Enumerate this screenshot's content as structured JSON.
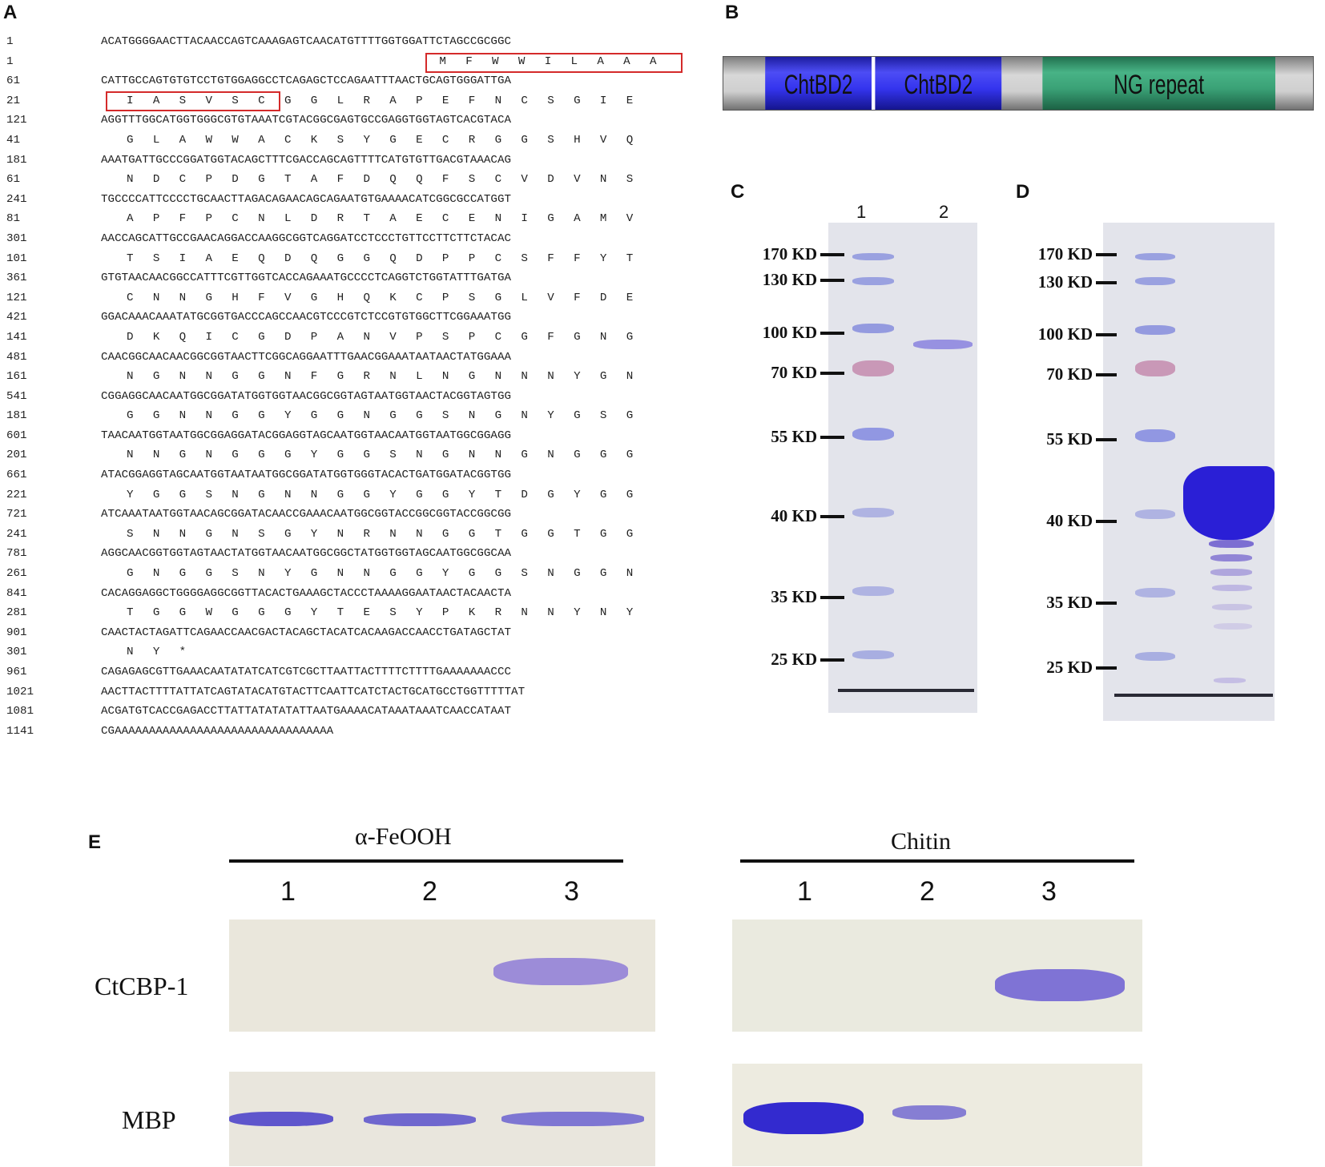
{
  "panels": {
    "a": "A",
    "b": "B",
    "c": "C",
    "d": "D",
    "e": "E"
  },
  "sequence": {
    "rows": [
      {
        "num": "1",
        "type": "nt",
        "text": "ACATGGGGAACTTACAACCAGTCAAAGAGTCAACATGTTTTGGTGGATTCTAGCCGCGGC"
      },
      {
        "num": "1",
        "type": "aa",
        "text": "M F W W I L A A A",
        "offset": 16
      },
      {
        "num": "61",
        "type": "nt",
        "text": "CATTGCCAGTGTGTCCTGTGGAGGCCTCAGAGCTCCAGAATTTAACTGCAGTGGGATTGA"
      },
      {
        "num": "21",
        "type": "aa",
        "text": "I A S V S C G G L R A P E F N C S G I E",
        "offset": 0
      },
      {
        "num": "121",
        "type": "nt",
        "text": "AGGTTTGGCATGGTGGGCGTGTAAATCGTACGGCGAGTGCCGAGGTGGTAGTCACGTACA"
      },
      {
        "num": "41",
        "type": "aa",
        "text": "G L A W W A C K S Y G E C R G G S H V Q",
        "offset": 0
      },
      {
        "num": "181",
        "type": "nt",
        "text": "AAATGATTGCCCGGATGGTACAGCTTTCGACCAGCAGTTTTCATGTGTTGACGTAAACAG"
      },
      {
        "num": "61",
        "type": "aa",
        "text": "N D C P D G T A F D Q Q F S C V D V N S",
        "offset": 0
      },
      {
        "num": "241",
        "type": "nt",
        "text": "TGCCCCATTCCCCTGCAACTTAGACAGAACAGCAGAATGTGAAAACATCGGCGCCATGGT"
      },
      {
        "num": "81",
        "type": "aa",
        "text": "A P F P C N L D R T A E C E N I G A M V",
        "offset": 0
      },
      {
        "num": "301",
        "type": "nt",
        "text": "AACCAGCATTGCCGAACAGGACCAAGGCGGTCAGGATCCTCCCTGTTCCTTCTTCTACAC"
      },
      {
        "num": "101",
        "type": "aa",
        "text": "T S I A E Q D Q G G Q D P P C S F F Y T",
        "offset": 0
      },
      {
        "num": "361",
        "type": "nt",
        "text": "GTGTAACAACGGCCATTTCGTTGGTCACCAGAAATGCCCCTCAGGTCTGGTATTTGATGA"
      },
      {
        "num": "121",
        "type": "aa",
        "text": "C N N G H F V G H Q K C P S G L V F D E",
        "offset": 0
      },
      {
        "num": "421",
        "type": "nt",
        "text": "GGACAAACAAATATGCGGTGACCCAGCCAACGTCCCGTCTCCGTGTGGCTTCGGAAATGG"
      },
      {
        "num": "141",
        "type": "aa",
        "text": "D K Q I C G D P A N V P S P C G F G N G",
        "offset": 0
      },
      {
        "num": "481",
        "type": "nt",
        "text": "CAACGGCAACAACGGCGGTAACTTCGGCAGGAATTTGAACGGAAATAATAACTATGGAAA"
      },
      {
        "num": "161",
        "type": "aa",
        "text": "N G N N G G N F G R N L N G N N N Y G N",
        "offset": 0
      },
      {
        "num": "541",
        "type": "nt",
        "text": "CGGAGGCAACAATGGCGGATATGGTGGTAACGGCGGTAGTAATGGTAACTACGGTAGTGG"
      },
      {
        "num": "181",
        "type": "aa",
        "text": "G G N N G G Y G G N G G S N G N Y G S G",
        "offset": 0
      },
      {
        "num": "601",
        "type": "nt",
        "text": "TAACAATGGTAATGGCGGAGGATACGGAGGTAGCAATGGTAACAATGGTAATGGCGGAGG"
      },
      {
        "num": "201",
        "type": "aa",
        "text": "N N G N G G G Y G G S N G N N G N G G G",
        "offset": 0
      },
      {
        "num": "661",
        "type": "nt",
        "text": "ATACGGAGGTAGCAATGGTAATAATGGCGGATATGGTGGGTACACTGATGGATACGGTGG"
      },
      {
        "num": "221",
        "type": "aa",
        "text": "Y G G S N G N N G G Y G G Y T D G Y G G",
        "offset": 0
      },
      {
        "num": "721",
        "type": "nt",
        "text": "ATCAAATAATGGTAACAGCGGATACAACCGAAACAATGGCGGTACCGGCGGTACCGGCGG"
      },
      {
        "num": "241",
        "type": "aa",
        "text": "S N N G N S G Y N R N N G G T G G T G G",
        "offset": 0
      },
      {
        "num": "781",
        "type": "nt",
        "text": "AGGCAACGGTGGTAGTAACTATGGTAACAATGGCGGCTATGGTGGTAGCAATGGCGGCAA"
      },
      {
        "num": "261",
        "type": "aa",
        "text": "G N G G S N Y G N N G G Y G G S N G G N",
        "offset": 0
      },
      {
        "num": "841",
        "type": "nt",
        "text": "CACAGGAGGCTGGGGAGGCGGTTACACTGAAAGCTACCCTAAAAGGAATAACTACAACTA"
      },
      {
        "num": "281",
        "type": "aa",
        "text": "T G G W G G G Y T E S Y P K R N N Y N Y",
        "offset": 0
      },
      {
        "num": "901",
        "type": "nt",
        "text": "CAACTACTAGATTCAGAACCAACGACTACAGCTACATCACAAGACCAACCTGATAGCTAT"
      },
      {
        "num": "301",
        "type": "aa",
        "text": "N Y *",
        "offset": 0
      },
      {
        "num": "961",
        "type": "nt",
        "text": "CAGAGAGCGTTGAAACAATATATCATCGTCGCTTAATTACTTTTCTTTTGAAAAAAACCC"
      },
      {
        "num": "1021",
        "type": "nt",
        "text": "AACTTACTTTTATTATCAGTATACATGTACTTCAATTCATCTACTGCATGCCTGGTTTTTAT"
      },
      {
        "num": "1081",
        "type": "nt",
        "text": "ACGATGTCACCGAGACCTTATTATATATATTAATGAAAACATAAATAAATCAACCATAAT"
      },
      {
        "num": "1141",
        "type": "nt",
        "text": "CGAAAAAAAAAAAAAAAAAAAAAAAAAAAAAAAA"
      }
    ]
  },
  "domain_diagram": {
    "segments": [
      {
        "label": "",
        "kind": "linker",
        "start": 0.0,
        "end": 0.072
      },
      {
        "label": "ChtBD2",
        "kind": "chtbd",
        "start": 0.072,
        "end": 0.252
      },
      {
        "label": "ChtBD2",
        "kind": "chtbd",
        "start": 0.258,
        "end": 0.472
      },
      {
        "label": "",
        "kind": "linker",
        "start": 0.472,
        "end": 0.541
      },
      {
        "label": "NG repeat",
        "kind": "ng",
        "start": 0.541,
        "end": 0.935
      },
      {
        "label": "",
        "kind": "linker",
        "start": 0.935,
        "end": 1.0
      }
    ],
    "colors": {
      "chtbd": "#2b2bf0",
      "ng": "#2e9a6a",
      "linker": "#a9a9a9"
    }
  },
  "gel_c": {
    "lanes": [
      "1",
      "2"
    ],
    "markers": [
      "170 KD",
      "130 KD",
      "100 KD",
      "70 KD",
      "55 KD",
      "40 KD",
      "35 KD",
      "25 KD"
    ]
  },
  "gel_d": {
    "markers": [
      "170 KD",
      "130 KD",
      "100 KD",
      "70 KD",
      "55 KD",
      "40 KD",
      "35 KD",
      "25 KD"
    ]
  },
  "panel_e": {
    "groups": [
      {
        "title": "α-FeOOH",
        "lanes": [
          "1",
          "2",
          "3"
        ]
      },
      {
        "title": "Chitin",
        "lanes": [
          "1",
          "2",
          "3"
        ]
      }
    ],
    "rows": [
      "CtCBP-1",
      "MBP"
    ]
  }
}
